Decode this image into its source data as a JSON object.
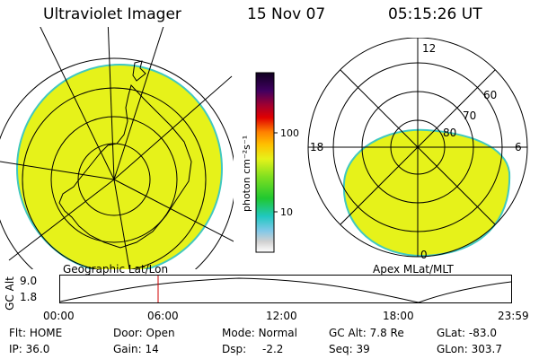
{
  "header": {
    "instrument": "Ultraviolet Imager",
    "date": "15 Nov 07",
    "time": "05:15:26 UT"
  },
  "left_map": {
    "label": "Geographic Lat/Lon"
  },
  "right_map": {
    "label": "Apex MLat/MLT",
    "mlt_labels": {
      "top": "12",
      "left": "18",
      "right": "6",
      "bottom": "0"
    },
    "lat_labels": [
      "60",
      "70",
      "80"
    ]
  },
  "colorbar": {
    "unit": "photon cm⁻²s⁻¹",
    "ticks": [
      {
        "label": "100",
        "value": 100
      },
      {
        "label": "10",
        "value": 10
      }
    ]
  },
  "timeline": {
    "ylabel": "GC Alt",
    "y_ticks": [
      "9.0",
      "1.8"
    ],
    "x_ticks": [
      "00:00",
      "06:00",
      "12:00",
      "18:00",
      "23:59"
    ],
    "current_time": "05:15"
  },
  "info": {
    "flt_label": "Flt:",
    "flt_value": "HOME",
    "ip_label": "IP:",
    "ip_value": "36.0",
    "door_label": "Door:",
    "door_value": "Open",
    "gain_label": "Gain:",
    "gain_value": "14",
    "mode_label": "Mode:",
    "mode_value": "Normal",
    "dsp_label": "Dsp:",
    "dsp_value": "-2.2",
    "gcalt_label": "GC Alt:",
    "gcalt_value": "7.8 Re",
    "seq_label": "Seq:",
    "seq_value": "39",
    "glat_label": "GLat:",
    "glat_value": "-83.0",
    "glon_label": "GLon:",
    "glon_value": "303.7"
  },
  "colors": {
    "aurora": "#e6f21a",
    "aurora_edge": "#40c8c0"
  }
}
